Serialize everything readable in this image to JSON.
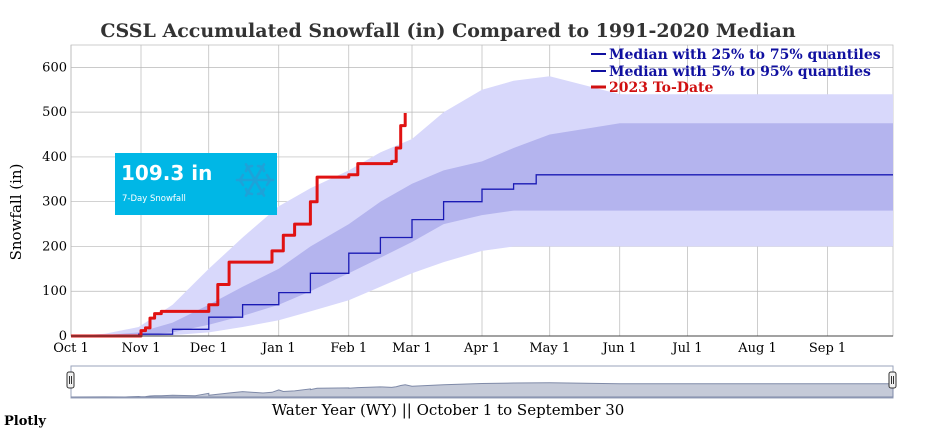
{
  "footer": {
    "text": "Plotly"
  },
  "badge": {
    "value": "109.3 in",
    "label": "7-Day Snowfall",
    "icon": "snowflake-icon",
    "color": "#00b7e6"
  },
  "colors": {
    "band_outer": "#d8d8fb",
    "band_inner": "#b4b4ee",
    "median": "#1a1ab4",
    "current": "#e01212",
    "legend_blue": "#1010a0",
    "legend_red": "#d01010",
    "grid": "#b8b8b8",
    "rangeslider_fill": "#c5cad8",
    "rangeslider_line": "#7f8aa8"
  },
  "chart_data": {
    "type": "area",
    "title": "CSSL Accumulated Snowfall (in) Compared to 1991-2020 Median",
    "xlabel": "Water Year (WY) || October 1 to September 30",
    "ylabel": "Snowfall (in)",
    "xlim": [
      "Oct 1",
      "Sep 30"
    ],
    "ylim": [
      0,
      650
    ],
    "grid": true,
    "legend_position": "top-right",
    "x_ticks": [
      "Oct 1",
      "Nov 1",
      "Dec 1",
      "Jan 1",
      "Feb 1",
      "Mar 1",
      "Apr 1",
      "May 1",
      "Jun 1",
      "Jul 1",
      "Aug 1",
      "Sep 1"
    ],
    "y_ticks": [
      0,
      100,
      200,
      300,
      400,
      500,
      600
    ],
    "legend": [
      "Median with 25% to 75% quantiles",
      "Median with 5% to 95% quantiles",
      "2023 To-Date"
    ],
    "median": {
      "x": [
        "Oct 1",
        "Oct 16",
        "Oct 31",
        "Nov 15",
        "Dec 1",
        "Dec 16",
        "Jan 1",
        "Jan 15",
        "Feb 1",
        "Feb 15",
        "Mar 1",
        "Mar 15",
        "Apr 1",
        "Apr 15",
        "Apr 25",
        "Sep 30"
      ],
      "y": [
        0,
        1,
        4,
        15,
        42,
        70,
        97,
        140,
        185,
        220,
        260,
        300,
        328,
        340,
        360,
        360
      ]
    },
    "quantile_25_75": {
      "x": [
        "Oct 1",
        "Oct 16",
        "Oct 31",
        "Nov 15",
        "Dec 1",
        "Dec 16",
        "Jan 1",
        "Jan 15",
        "Feb 1",
        "Feb 15",
        "Mar 1",
        "Mar 15",
        "Apr 1",
        "Apr 15",
        "May 1",
        "Jun 1",
        "Sep 30"
      ],
      "low": [
        0,
        0,
        2,
        8,
        25,
        45,
        70,
        100,
        140,
        175,
        210,
        250,
        270,
        280,
        280,
        280,
        280
      ],
      "high": [
        0,
        2,
        8,
        30,
        70,
        110,
        150,
        200,
        250,
        300,
        340,
        370,
        390,
        420,
        450,
        475,
        475
      ]
    },
    "quantile_5_95": {
      "x": [
        "Oct 1",
        "Oct 16",
        "Oct 31",
        "Nov 15",
        "Dec 1",
        "Dec 16",
        "Jan 1",
        "Jan 15",
        "Feb 1",
        "Feb 15",
        "Mar 1",
        "Mar 15",
        "Apr 1",
        "Apr 15",
        "May 1",
        "Jun 1",
        "Sep 30"
      ],
      "low": [
        0,
        0,
        0,
        2,
        8,
        20,
        35,
        55,
        80,
        110,
        140,
        165,
        190,
        200,
        200,
        200,
        200
      ],
      "high": [
        0,
        5,
        20,
        70,
        150,
        220,
        290,
        330,
        370,
        410,
        440,
        500,
        550,
        570,
        580,
        540,
        540
      ]
    },
    "current_2023": {
      "x": [
        "Oct 1",
        "Oct 25",
        "Nov 1",
        "Nov 3",
        "Nov 5",
        "Nov 7",
        "Nov 10",
        "Nov 25",
        "Dec 1",
        "Dec 5",
        "Dec 10",
        "Dec 25",
        "Dec 29",
        "Jan 3",
        "Jan 8",
        "Jan 15",
        "Jan 18",
        "Feb 1",
        "Feb 5",
        "Feb 20",
        "Feb 22",
        "Feb 24",
        "Feb 26"
      ],
      "y": [
        0,
        0,
        12,
        18,
        40,
        50,
        55,
        55,
        70,
        115,
        165,
        165,
        190,
        225,
        250,
        300,
        355,
        360,
        385,
        390,
        420,
        470,
        498
      ]
    }
  }
}
